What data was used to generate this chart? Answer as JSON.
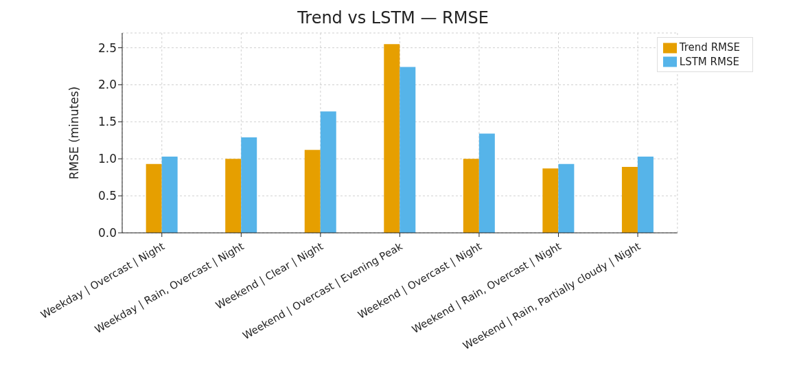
{
  "chart_data": {
    "type": "bar",
    "title": "Trend vs LSTM — RMSE",
    "ylabel": "RMSE (minutes)",
    "categories": [
      "Weekday | Overcast | Night",
      "Weekday | Rain, Overcast | Night",
      "Weekend | Clear | Night",
      "Weekend | Overcast | Evening Peak",
      "Weekend | Overcast | Night",
      "Weekend | Rain, Overcast | Night",
      "Weekend | Rain, Partially cloudy | Night"
    ],
    "series": [
      {
        "name": "Trend RMSE",
        "color": "#e69f00",
        "values": [
          0.93,
          1.0,
          1.12,
          2.55,
          1.0,
          0.87,
          0.89
        ]
      },
      {
        "name": "LSTM RMSE",
        "color": "#56b4e9",
        "values": [
          1.03,
          1.29,
          1.64,
          2.24,
          1.34,
          0.93,
          1.03
        ]
      }
    ],
    "ylim": [
      0,
      2.7
    ],
    "yticks": [
      {
        "value": 0,
        "label": "0.0"
      },
      0.5,
      {
        "value": 1,
        "label": "1.0"
      },
      1.5,
      {
        "value": 2,
        "label": "2.0"
      },
      2.5
    ],
    "grid": true,
    "legend": "top right"
  }
}
